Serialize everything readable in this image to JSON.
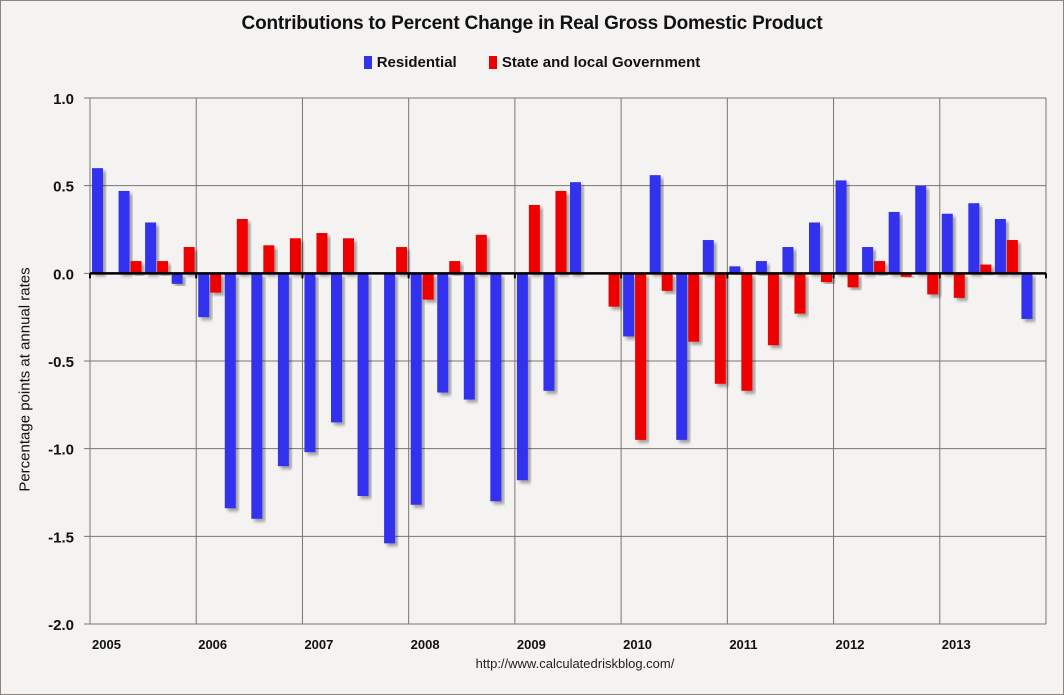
{
  "chart_data": {
    "type": "bar",
    "title": "Contributions to Percent Change in Real Gross Domestic Product",
    "xlabel": "",
    "ylabel": "Percentage points at annual rates",
    "ylim": [
      -2.0,
      1.0
    ],
    "yticks": [
      "1.0",
      "0.5",
      "0.0",
      "-0.5",
      "-1.0",
      "-1.5",
      "-2.0"
    ],
    "ytick_values": [
      1.0,
      0.5,
      0.0,
      -0.5,
      -1.0,
      -1.5,
      -2.0
    ],
    "grid": true,
    "legend_position": "top-center",
    "year_labels": [
      "2005",
      "2006",
      "2007",
      "2008",
      "2009",
      "2010",
      "2011",
      "2012",
      "2013"
    ],
    "categories": [
      "2005Q1",
      "2005Q2",
      "2005Q3",
      "2005Q4",
      "2006Q1",
      "2006Q2",
      "2006Q3",
      "2006Q4",
      "2007Q1",
      "2007Q2",
      "2007Q3",
      "2007Q4",
      "2008Q1",
      "2008Q2",
      "2008Q3",
      "2008Q4",
      "2009Q1",
      "2009Q2",
      "2009Q3",
      "2009Q4",
      "2010Q1",
      "2010Q2",
      "2010Q3",
      "2010Q4",
      "2011Q1",
      "2011Q2",
      "2011Q3",
      "2011Q4",
      "2012Q1",
      "2012Q2",
      "2012Q3",
      "2012Q4",
      "2013Q1",
      "2013Q2",
      "2013Q3",
      "2013Q4"
    ],
    "series": [
      {
        "name": "Residential",
        "color": "#3333ee",
        "values": [
          0.6,
          0.47,
          0.29,
          -0.06,
          -0.25,
          -1.34,
          -1.4,
          -1.1,
          -1.02,
          -0.85,
          -1.27,
          -1.54,
          -1.32,
          -0.68,
          -0.72,
          -1.3,
          -1.18,
          -0.67,
          0.52,
          0.0,
          -0.36,
          0.56,
          -0.95,
          0.19,
          0.04,
          0.07,
          0.15,
          0.29,
          0.53,
          0.15,
          0.35,
          0.5,
          0.34,
          0.4,
          0.31,
          -0.26
        ]
      },
      {
        "name": "State and local Government",
        "color": "#ee0000",
        "values": [
          0.0,
          0.07,
          0.07,
          0.15,
          -0.11,
          0.31,
          0.16,
          0.2,
          0.23,
          0.2,
          0.0,
          0.15,
          -0.15,
          0.07,
          0.22,
          0.0,
          0.39,
          0.47,
          0.0,
          -0.19,
          -0.95,
          -0.1,
          -0.39,
          -0.63,
          -0.67,
          -0.41,
          -0.23,
          -0.05,
          -0.08,
          0.07,
          -0.02,
          -0.12,
          -0.14,
          0.05,
          0.19,
          0.0
        ]
      }
    ],
    "source": "http://www.calculatedriskblog.com/"
  }
}
